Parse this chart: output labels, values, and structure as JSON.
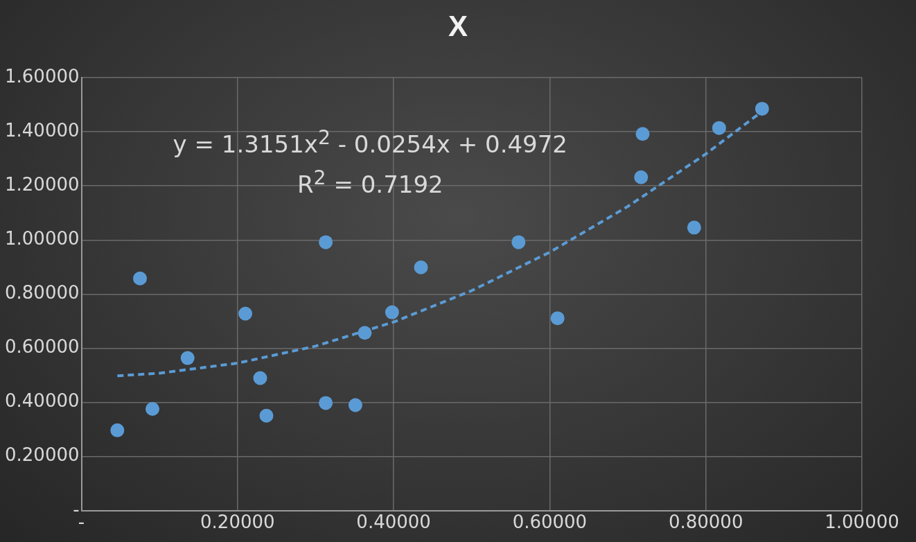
{
  "chart_data": {
    "type": "scatter",
    "title": "X",
    "xlim": [
      0,
      1
    ],
    "ylim": [
      0,
      1.6
    ],
    "xticks": [
      {
        "value": 0,
        "label": "-"
      },
      {
        "value": 0.2,
        "label": "0.20000"
      },
      {
        "value": 0.4,
        "label": "0.40000"
      },
      {
        "value": 0.6,
        "label": "0.60000"
      },
      {
        "value": 0.8,
        "label": "0.80000"
      },
      {
        "value": 1,
        "label": "1.00000"
      }
    ],
    "yticks": [
      {
        "value": 0,
        "label": "-"
      },
      {
        "value": 0.2,
        "label": "0.20000"
      },
      {
        "value": 0.4,
        "label": "0.40000"
      },
      {
        "value": 0.6,
        "label": "0.60000"
      },
      {
        "value": 0.8,
        "label": "0.80000"
      },
      {
        "value": 1,
        "label": "1.00000"
      },
      {
        "value": 1.2,
        "label": "1.20000"
      },
      {
        "value": 1.4,
        "label": "1.40000"
      },
      {
        "value": 1.6,
        "label": "1.60000"
      }
    ],
    "grid": true,
    "legend": false,
    "annotations": [
      "y = 1.3151x$^{2}$ - 0.0254x + 0.4972",
      "R$^{2}$ = 0.7192"
    ],
    "series": [
      {
        "type": "scatter",
        "color": "#5b9bd5",
        "marker": "circle",
        "x": [
          0.046,
          0.075,
          0.091,
          0.136,
          0.21,
          0.229,
          0.237,
          0.313,
          0.313,
          0.351,
          0.363,
          0.398,
          0.435,
          0.56,
          0.61,
          0.717,
          0.719,
          0.785,
          0.817,
          0.872
        ],
        "values": [
          0.297,
          0.858,
          0.376,
          0.564,
          0.728,
          0.49,
          0.351,
          0.992,
          0.398,
          0.39,
          0.657,
          0.733,
          0.899,
          0.992,
          0.711,
          1.232,
          1.392,
          1.046,
          1.414,
          1.485
        ]
      },
      {
        "type": "line",
        "color": "#5b9bd5",
        "marker": "none",
        "line_style": "dashed",
        "x": [
          0.046,
          0.1,
          0.2,
          0.3,
          0.4,
          0.5,
          0.6,
          0.7,
          0.8,
          0.872
        ],
        "values": [
          0.498,
          0.508,
          0.545,
          0.608,
          0.697,
          0.813,
          0.955,
          1.124,
          1.318,
          1.475
        ]
      }
    ]
  }
}
